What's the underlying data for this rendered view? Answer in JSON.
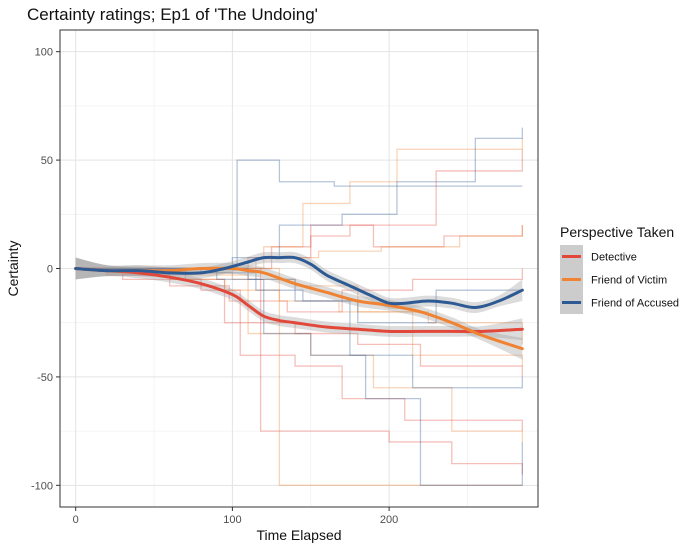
{
  "chart_data": {
    "type": "line",
    "title": "Certainty ratings; Ep1 of 'The Undoing'",
    "xlabel": "Time Elapsed",
    "ylabel": "Certainty",
    "xlim": [
      -10,
      295
    ],
    "ylim": [
      -110,
      110
    ],
    "x_ticks": [
      0,
      100,
      200
    ],
    "y_ticks": [
      -100,
      -50,
      0,
      50,
      100
    ],
    "grid": true,
    "legend": {
      "title": "Perspective Taken",
      "position": "right"
    },
    "series": [
      {
        "name": "Detective",
        "color": "#e1483a",
        "x": [
          0,
          20,
          40,
          60,
          80,
          100,
          110,
          120,
          130,
          140,
          160,
          180,
          200,
          220,
          240,
          260,
          285
        ],
        "values": [
          0,
          -1,
          -2,
          -4,
          -7,
          -12,
          -17,
          -22,
          -24,
          -25,
          -27,
          -28,
          -29,
          -29,
          -29,
          -29,
          -28
        ]
      },
      {
        "name": "Friend of Victim",
        "color": "#ef8333",
        "x": [
          0,
          20,
          40,
          60,
          80,
          100,
          110,
          120,
          140,
          160,
          180,
          200,
          220,
          240,
          260,
          285
        ],
        "values": [
          0,
          -1,
          -1,
          -1,
          0,
          0,
          -1,
          -2,
          -7,
          -11,
          -15,
          -17,
          -20,
          -25,
          -31,
          -37
        ]
      },
      {
        "name": "Friend of Accused",
        "color": "#2e5a94",
        "x": [
          0,
          20,
          40,
          60,
          80,
          95,
          110,
          120,
          130,
          140,
          150,
          160,
          175,
          190,
          200,
          210,
          225,
          240,
          255,
          270,
          285
        ],
        "values": [
          0,
          -1,
          -1,
          -2,
          -2,
          0,
          3,
          5,
          5,
          5,
          2,
          -3,
          -8,
          -13,
          -16,
          -16,
          -15,
          -16,
          -18,
          -15,
          -10
        ]
      }
    ],
    "individual_traces": {
      "Detective": [
        {
          "x": [
            0,
            40,
            70,
            95,
            140,
            180,
            220,
            285
          ],
          "values": [
            0,
            0,
            -5,
            -25,
            -30,
            -35,
            -45,
            -50
          ]
        },
        {
          "x": [
            0,
            60,
            100,
            125,
            150,
            175,
            230,
            285
          ],
          "values": [
            0,
            0,
            0,
            10,
            15,
            20,
            45,
            55
          ]
        },
        {
          "x": [
            0,
            30,
            80,
            105,
            140,
            170,
            210,
            285
          ],
          "values": [
            0,
            -5,
            -10,
            -40,
            -45,
            -60,
            -70,
            -75
          ]
        },
        {
          "x": [
            0,
            50,
            90,
            118,
            160,
            200,
            240,
            285
          ],
          "values": [
            0,
            0,
            0,
            -75,
            -75,
            -80,
            -90,
            -95
          ]
        },
        {
          "x": [
            0,
            20,
            60,
            98,
            135,
            170,
            215,
            285
          ],
          "values": [
            0,
            -3,
            -8,
            -15,
            -20,
            -10,
            -5,
            0
          ]
        },
        {
          "x": [
            0,
            45,
            85,
            110,
            150,
            190,
            235,
            285
          ],
          "values": [
            0,
            0,
            0,
            5,
            20,
            10,
            15,
            20
          ]
        }
      ],
      "Friend of Victim": [
        {
          "x": [
            0,
            40,
            80,
            120,
            145,
            175,
            205,
            285
          ],
          "values": [
            0,
            0,
            0,
            10,
            30,
            40,
            55,
            60
          ]
        },
        {
          "x": [
            0,
            30,
            70,
            110,
            150,
            190,
            240,
            285
          ],
          "values": [
            0,
            0,
            -3,
            -30,
            -40,
            -55,
            -75,
            -80
          ]
        },
        {
          "x": [
            0,
            20,
            60,
            95,
            130,
            168,
            215,
            285
          ],
          "values": [
            0,
            -2,
            -5,
            -10,
            -15,
            -20,
            -40,
            -45
          ]
        },
        {
          "x": [
            0,
            50,
            90,
            130,
            160,
            200,
            250,
            285
          ],
          "values": [
            0,
            0,
            0,
            -100,
            -100,
            -100,
            -100,
            -100
          ]
        },
        {
          "x": [
            0,
            35,
            75,
            115,
            155,
            195,
            245,
            285
          ],
          "values": [
            0,
            0,
            0,
            5,
            8,
            10,
            15,
            20
          ]
        },
        {
          "x": [
            0,
            25,
            65,
            100,
            140,
            180,
            225,
            285
          ],
          "values": [
            0,
            -1,
            -2,
            -5,
            -8,
            -20,
            -25,
            -35
          ]
        }
      ],
      "Friend of Accused": [
        {
          "x": [
            0,
            60,
            95,
            103,
            130,
            165,
            210,
            285
          ],
          "values": [
            0,
            0,
            0,
            50,
            40,
            38,
            38,
            38
          ]
        },
        {
          "x": [
            0,
            45,
            90,
            120,
            150,
            185,
            220,
            285
          ],
          "values": [
            0,
            0,
            -5,
            -30,
            -40,
            -60,
            -100,
            -80
          ]
        },
        {
          "x": [
            0,
            30,
            80,
            115,
            145,
            180,
            230,
            285
          ],
          "values": [
            0,
            0,
            -2,
            -10,
            -15,
            -25,
            -10,
            -10
          ]
        },
        {
          "x": [
            0,
            55,
            100,
            130,
            170,
            205,
            255,
            285
          ],
          "values": [
            0,
            0,
            5,
            20,
            25,
            40,
            60,
            65
          ]
        },
        {
          "x": [
            0,
            40,
            85,
            110,
            140,
            175,
            215,
            285
          ],
          "values": [
            0,
            0,
            0,
            -5,
            -15,
            -40,
            -55,
            -50
          ]
        }
      ]
    }
  }
}
